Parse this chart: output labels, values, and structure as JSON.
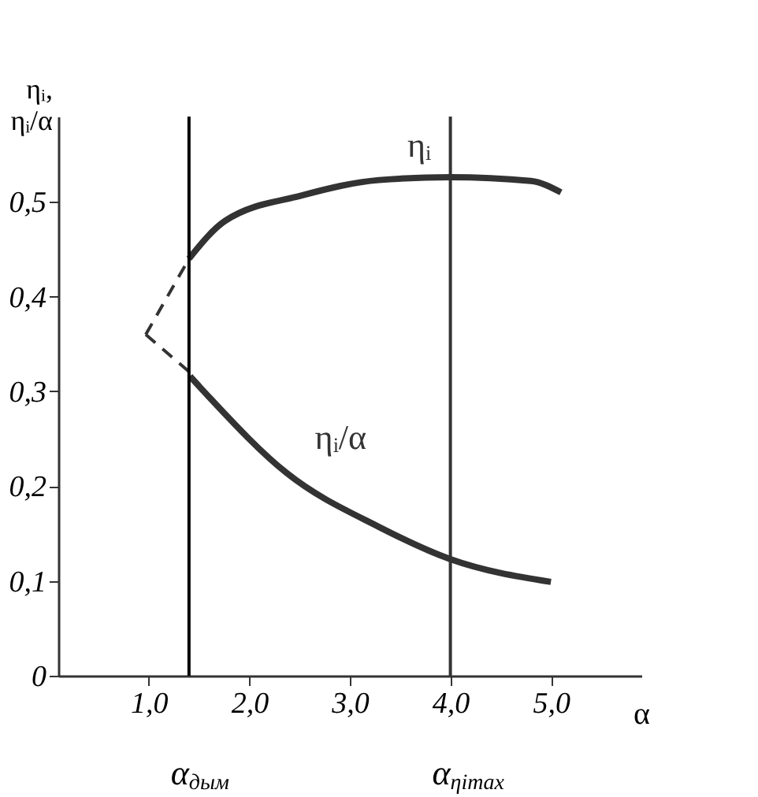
{
  "chart_data": {
    "type": "line",
    "xlabel": "α",
    "ylabel": "ηᵢ, ηᵢ/α",
    "xlim": [
      0.1,
      5.9
    ],
    "ylim": [
      0,
      0.59
    ],
    "xticks": [
      {
        "value": 1,
        "label": "1,0"
      },
      {
        "value": 2,
        "label": "2,0"
      },
      {
        "value": 3,
        "label": "3,0"
      },
      {
        "value": 4,
        "label": "4,0"
      },
      {
        "value": 5,
        "label": "5,0"
      }
    ],
    "yticks": [
      0,
      {
        "value": 0.1,
        "label": "0,1"
      },
      {
        "value": 0.2,
        "label": "0,2"
      },
      {
        "value": 0.3,
        "label": "0,3"
      },
      {
        "value": 0.4,
        "label": "0,4"
      },
      {
        "value": 0.5,
        "label": "0,5"
      }
    ],
    "grid": false,
    "marker": "none",
    "series": [
      {
        "name": "ηᵢ",
        "color": "#333333",
        "line_style": "solid",
        "x": [
          1.4,
          1.76,
          2.53,
          3.29,
          4.0,
          4.8,
          5.1
        ],
        "values": [
          0.44,
          0.48,
          0.507,
          0.523,
          0.526,
          0.522,
          0.51
        ]
      },
      {
        "name": "ηᵢ/α",
        "color": "#333333",
        "line_style": "solid",
        "x": [
          1.41,
          1.6,
          2.37,
          3.29,
          4.0,
          5.0
        ],
        "values": [
          0.316,
          0.294,
          0.214,
          0.157,
          0.123,
          0.099
        ]
      },
      {
        "color": "#333333",
        "line_style": "dashed",
        "x": [
          0.97,
          1.4
        ],
        "values": [
          0.36,
          0.44
        ]
      },
      {
        "color": "#333333",
        "line_style": "dashed",
        "x": [
          0.97,
          1.41
        ],
        "values": [
          0.36,
          0.32
        ]
      }
    ],
    "ref_lines": [
      {
        "axis": "x",
        "value": 1.4,
        "label": "α$_{дым}$",
        "color": "#000000"
      },
      {
        "axis": "x",
        "value": 4.0,
        "label": "α$_{ηimax}$",
        "color": "#333333"
      }
    ]
  }
}
